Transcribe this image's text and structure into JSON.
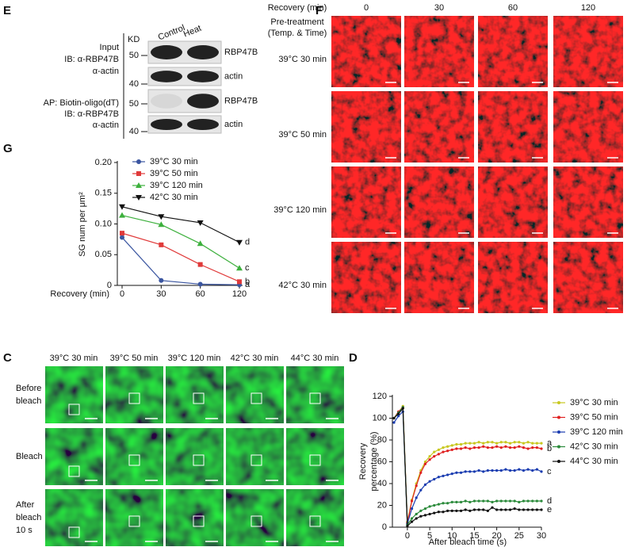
{
  "panel_labels": [
    "E",
    "F",
    "G",
    "C",
    "D"
  ],
  "blot": {
    "lanes": [
      "Control",
      "Heat"
    ],
    "kd": "KD",
    "groups": [
      {
        "lines": [
          "Input",
          "IB: α-RBP47B",
          "α-actin"
        ]
      },
      {
        "lines": [
          "AP: Biotin-oligo(dT)",
          "IB: α-RBP47B",
          "α-actin"
        ]
      }
    ],
    "markers": [
      "50",
      "40",
      "50",
      "40"
    ],
    "bands": [
      "RBP47B",
      "actin",
      "RBP47B",
      "actin"
    ]
  },
  "heat_images": {
    "column_title": "Recovery (min)",
    "columns": [
      "0",
      "30",
      "60",
      "120"
    ],
    "row_title": [
      "Pre-treatment",
      "(Temp. & Time)"
    ],
    "rows": [
      "39°C 30 min",
      "39°C 50 min",
      "39°C 120 min",
      "42°C 30 min"
    ]
  },
  "fluor_images": {
    "columns": [
      "39°C 30 min",
      "39°C 50 min",
      "39°C 120 min",
      "42°C 30 min",
      "44°C 30 min"
    ],
    "rows": [
      [
        "Before",
        "bleach"
      ],
      [
        "Bleach"
      ],
      [
        "After",
        "bleach",
        "10 s"
      ]
    ]
  },
  "chart_data": [
    {
      "type": "line",
      "categories": [
        "0",
        "30",
        "60",
        "120"
      ],
      "x_label": "Recovery (min)",
      "y_label": "SG num per μm²",
      "ylim": [
        0,
        0.2
      ],
      "yticks": [
        0,
        0.05,
        {
          "value": 0.1,
          "label": "0.10"
        },
        0.15,
        {
          "value": 0.2,
          "label": "0.20"
        }
      ],
      "series": [
        {
          "name": "39°C 30 min",
          "color": "#3a55a0",
          "marker": "circle",
          "letter": "a",
          "values": [
            0.078,
            0.008,
            0.002,
            0.001
          ]
        },
        {
          "name": "39°C 50 min",
          "color": "#e03a3a",
          "marker": "square",
          "letter": "b",
          "values": [
            0.085,
            0.066,
            0.034,
            0.006
          ]
        },
        {
          "name": "39°C 120 min",
          "color": "#3db03d",
          "marker": "triangle-up",
          "letter": "c",
          "values": [
            0.114,
            0.099,
            0.068,
            0.028
          ]
        },
        {
          "name": "42°C 30 min",
          "color": "#111111",
          "marker": "triangle-down",
          "letter": "d",
          "values": [
            0.128,
            0.112,
            0.102,
            0.07
          ]
        }
      ]
    },
    {
      "type": "line",
      "x": [
        -3,
        -2,
        -1,
        0,
        1,
        2,
        3,
        4,
        5,
        6,
        7,
        8,
        9,
        10,
        11,
        12,
        13,
        14,
        15,
        16,
        17,
        18,
        19,
        20,
        21,
        22,
        23,
        24,
        25,
        26,
        27,
        28,
        29,
        30
      ],
      "x_label": "After bleach time (s)",
      "y_label": [
        "Recovery",
        "percentage (%)"
      ],
      "xlim": [
        -3,
        30
      ],
      "xticks": [
        0,
        5,
        10,
        15,
        20,
        25,
        30
      ],
      "ylim": [
        0,
        120
      ],
      "yticks": [
        0,
        20,
        40,
        60,
        80,
        100,
        120
      ],
      "series": [
        {
          "name": "39°C 30 min",
          "color": "#c8c820",
          "letter": "a",
          "values": [
            100,
            105,
            111,
            5,
            25,
            40,
            52,
            60,
            65,
            69,
            71,
            73,
            74,
            75,
            76,
            76,
            77,
            77,
            77,
            78,
            77,
            78,
            78,
            77,
            78,
            78,
            77,
            78,
            78,
            77,
            78,
            77,
            77,
            77
          ]
        },
        {
          "name": "39°C 50 min",
          "color": "#e02020",
          "letter": "b",
          "values": [
            100,
            106,
            110,
            4,
            24,
            38,
            50,
            58,
            62,
            65,
            67,
            69,
            70,
            71,
            72,
            72,
            73,
            72,
            73,
            73,
            74,
            73,
            73,
            74,
            73,
            74,
            73,
            73,
            74,
            73,
            72,
            73,
            73,
            72
          ]
        },
        {
          "name": "39°C 120 min",
          "color": "#1a3cb0",
          "letter": "c",
          "values": [
            96,
            102,
            106,
            3,
            17,
            27,
            34,
            39,
            42,
            44,
            46,
            47,
            48,
            49,
            50,
            50,
            51,
            51,
            51,
            52,
            51,
            52,
            52,
            52,
            52,
            53,
            52,
            52,
            53,
            52,
            53,
            52,
            53,
            51
          ]
        },
        {
          "name": "42°C 30 min",
          "color": "#2a8a3a",
          "letter": "d",
          "values": [
            100,
            105,
            110,
            2,
            8,
            12,
            15,
            17,
            19,
            20,
            21,
            22,
            22,
            23,
            23,
            23,
            24,
            23,
            24,
            24,
            24,
            24,
            23,
            24,
            24,
            24,
            24,
            24,
            23,
            24,
            24,
            24,
            24,
            24
          ]
        },
        {
          "name": "44°C 30 min",
          "color": "#111111",
          "letter": "e",
          "values": [
            100,
            104,
            109,
            1,
            5,
            8,
            10,
            11,
            12,
            13,
            14,
            14,
            15,
            15,
            15,
            15,
            16,
            15,
            16,
            16,
            16,
            15,
            18,
            16,
            16,
            16,
            16,
            17,
            16,
            16,
            16,
            16,
            16,
            16
          ]
        }
      ]
    }
  ]
}
